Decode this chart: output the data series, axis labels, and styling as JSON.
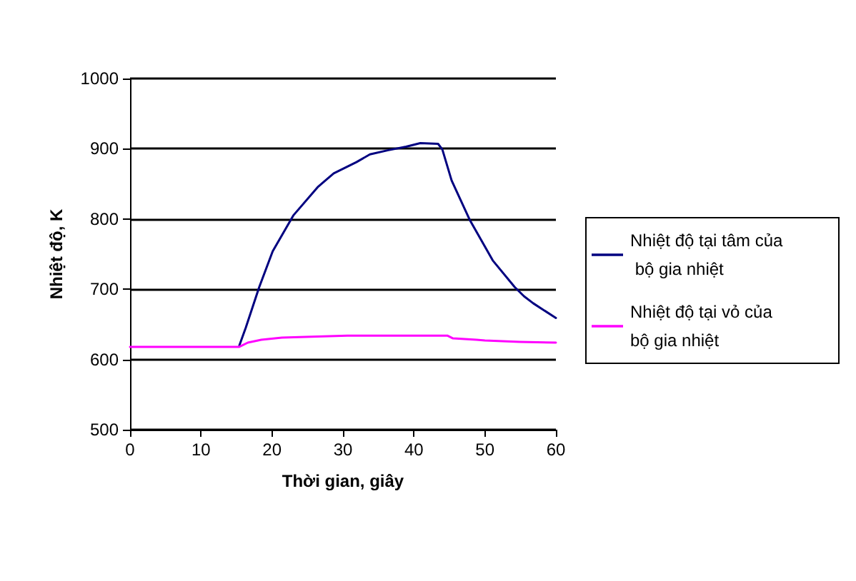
{
  "chart_data": {
    "type": "line",
    "xlabel": "Thời gian, giây",
    "ylabel": "Nhiệt độ, K",
    "xlim": [
      0,
      60
    ],
    "xticks": [
      0,
      10,
      20,
      30,
      40,
      50,
      60
    ],
    "ylim": [
      500,
      1000
    ],
    "yticks": [
      500,
      600,
      700,
      800,
      900,
      1000
    ],
    "grid": "y",
    "legend": "right",
    "marker": "none",
    "line_style": "solid",
    "series": [
      {
        "name": "Nhiệt độ tại tâm của bộ gia nhiệt",
        "color": "#000080",
        "x": [
          15.4,
          16.3,
          18.2,
          20.1,
          23,
          26.5,
          28.7,
          31.9,
          33.8,
          36.4,
          38.9,
          40.9,
          43.4,
          44,
          45.3,
          47.9,
          51.1,
          54.2,
          55.5,
          56.8,
          60
        ],
        "values": [
          620,
          645,
          703,
          754,
          805,
          846,
          865,
          881,
          892,
          898,
          903,
          908,
          907,
          899,
          855,
          798,
          741,
          703,
          690,
          680,
          659
        ]
      },
      {
        "name": "Nhiệt độ tại vỏ của bộ gia nhiệt",
        "color": "#ff00ff",
        "x": [
          0,
          15.4,
          16.6,
          18.5,
          21.4,
          30.6,
          44.7,
          45.5,
          48.8,
          50,
          54.9,
          60
        ],
        "values": [
          618,
          618,
          624,
          628,
          631,
          634,
          634,
          630,
          628,
          627,
          625,
          624
        ]
      }
    ]
  }
}
